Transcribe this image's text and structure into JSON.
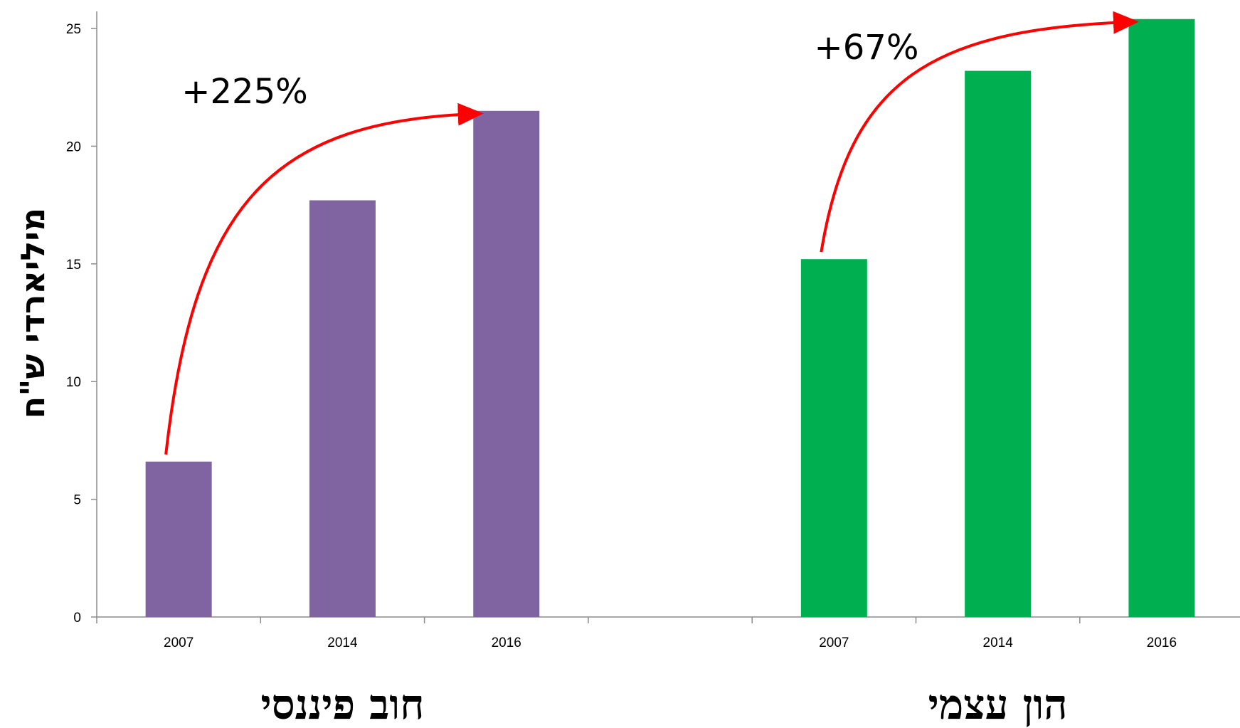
{
  "chart_data": {
    "type": "bar",
    "ylabel": "מיליארדי ש\"ח",
    "ylim": [
      0,
      25.9
    ],
    "yticks": [
      0,
      5,
      10,
      15,
      20,
      25
    ],
    "grid": false,
    "groups": [
      {
        "label": "חוב פיננסי",
        "color": "#8064A2",
        "categories": [
          "2007",
          "2014",
          "2016"
        ],
        "values": [
          6.6,
          17.7,
          21.5
        ],
        "annotation": "+225%"
      },
      {
        "label": "הון עצמי",
        "color": "#00B050",
        "categories": [
          "2007",
          "2014",
          "2016"
        ],
        "values": [
          15.2,
          23.2,
          25.4
        ],
        "annotation": "+67%"
      }
    ],
    "arrow_color": "#FF0000"
  }
}
